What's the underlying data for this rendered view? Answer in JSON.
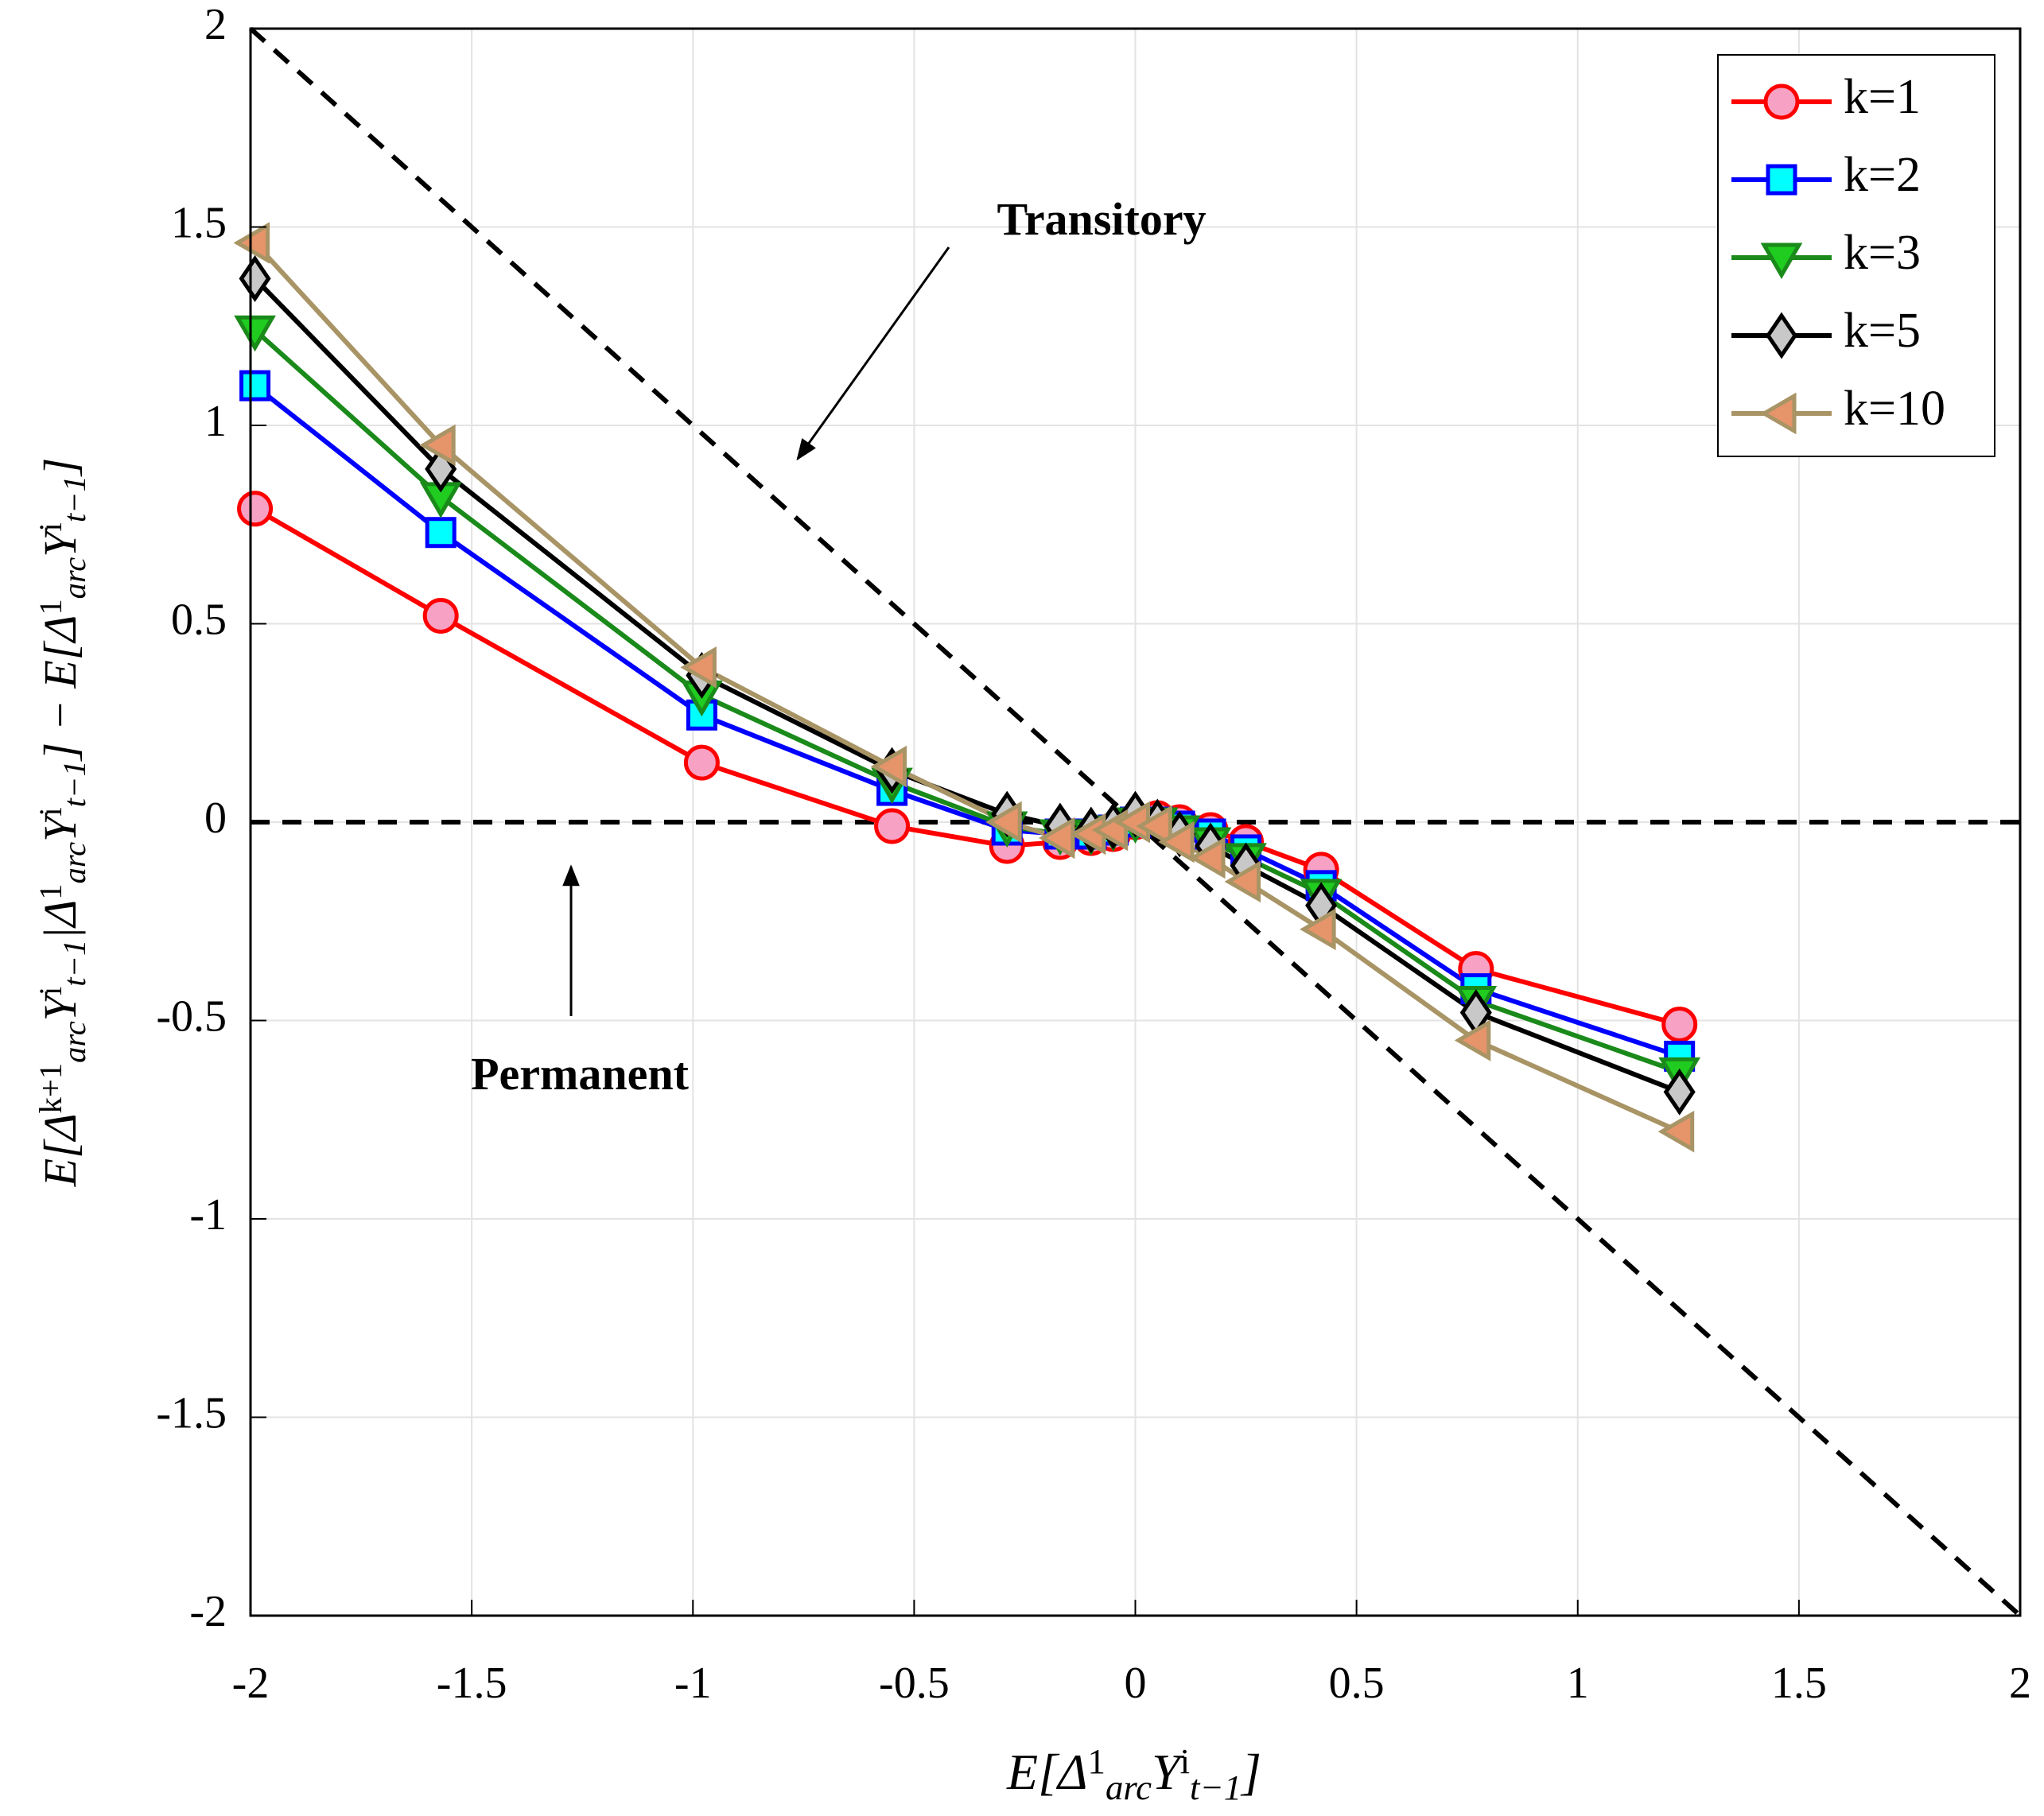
{
  "chart_data": {
    "type": "line",
    "x_label": [
      "E[Δ",
      "1",
      "arc",
      "Y",
      "i",
      "t−1",
      "]"
    ],
    "y_label": [
      "E[Δ",
      "k+1",
      "arc",
      "Y",
      "i",
      "t−1",
      "|Δ",
      "1",
      "arc",
      "Y",
      "i",
      "t−1",
      "] − E[Δ",
      "1",
      "arc",
      "Y",
      "i",
      "t−1",
      "]"
    ],
    "annotations": [
      "Transitory",
      "Permanent"
    ],
    "x": [
      -1.99,
      -1.57,
      -0.98,
      -0.55,
      -0.29,
      -0.17,
      -0.1,
      -0.05,
      0,
      0.05,
      0.1,
      0.17,
      0.25,
      0.42,
      0.77,
      1.23
    ],
    "series": [
      {
        "name": "k=1",
        "color": "#ff0000",
        "fill": "#f7a1c4",
        "marker": "circle",
        "values": [
          0.79,
          0.52,
          0.15,
          -0.01,
          -0.06,
          -0.05,
          -0.04,
          -0.03,
          0,
          0.01,
          0,
          -0.02,
          -0.05,
          -0.12,
          -0.37,
          -0.51
        ]
      },
      {
        "name": "k=2",
        "color": "#0000ff",
        "fill": "#00ffff",
        "marker": "square",
        "values": [
          1.1,
          0.73,
          0.27,
          0.08,
          -0.02,
          -0.03,
          -0.03,
          -0.02,
          0,
          0,
          -0.01,
          -0.03,
          -0.07,
          -0.16,
          -0.42,
          -0.59
        ]
      },
      {
        "name": "k=3",
        "color": "#1a8a1a",
        "fill": "#1fcc1f",
        "marker": "triangle-down",
        "values": [
          1.24,
          0.82,
          0.32,
          0.1,
          -0.01,
          -0.03,
          -0.03,
          -0.02,
          0,
          0,
          -0.02,
          -0.05,
          -0.09,
          -0.18,
          -0.45,
          -0.63
        ]
      },
      {
        "name": "k=5",
        "color": "#000000",
        "fill": "#c8c8c8",
        "marker": "diamond",
        "values": [
          1.37,
          0.89,
          0.37,
          0.13,
          0.02,
          -0.01,
          -0.02,
          -0.01,
          0.02,
          0,
          -0.03,
          -0.06,
          -0.11,
          -0.21,
          -0.48,
          -0.68
        ]
      },
      {
        "name": "k=10",
        "color": "#a89465",
        "fill": "#e6946a",
        "marker": "triangle-left",
        "values": [
          1.46,
          0.95,
          0.39,
          0.14,
          0,
          -0.04,
          -0.03,
          -0.02,
          0,
          -0.01,
          -0.05,
          -0.09,
          -0.15,
          -0.27,
          -0.55,
          -0.78
        ]
      }
    ],
    "xlim": [
      -2,
      2
    ],
    "ylim": [
      -2,
      2
    ],
    "xticks": [
      -2,
      -1.5,
      -1,
      -0.5,
      0,
      0.5,
      1,
      1.5,
      2
    ],
    "yticks": [
      -2,
      -1.5,
      -1,
      -0.5,
      0,
      0.5,
      1,
      1.5,
      2
    ],
    "grid": true,
    "legend": "upper right"
  }
}
